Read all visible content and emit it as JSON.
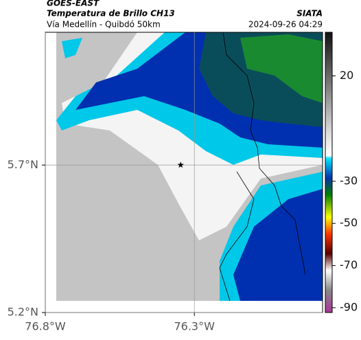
{
  "header": {
    "title": "GOES-EAST",
    "subtitle": "Temperatura de Brillo CH13",
    "route": "Vía Medellín - Quibdó 50km",
    "agency": "SIATA",
    "datetime": "2024-09-26 04:29"
  },
  "map": {
    "xlim": [
      -76.8,
      -75.87
    ],
    "ylim": [
      5.2,
      6.15
    ],
    "xticks": [
      {
        "value": -76.8,
        "label": "76.8°W"
      },
      {
        "value": -76.3,
        "label": "76.3°W"
      }
    ],
    "yticks": [
      {
        "value": 5.7,
        "label": "5.7°N"
      },
      {
        "value": 5.2,
        "label": "5.2°N"
      }
    ],
    "marker": {
      "lon": -76.346,
      "lat": 5.7
    }
  },
  "colorbar": {
    "lim": [
      -92.3,
      40.7
    ],
    "ticks": [
      20,
      -30,
      -50,
      -70,
      -90
    ]
  }
}
